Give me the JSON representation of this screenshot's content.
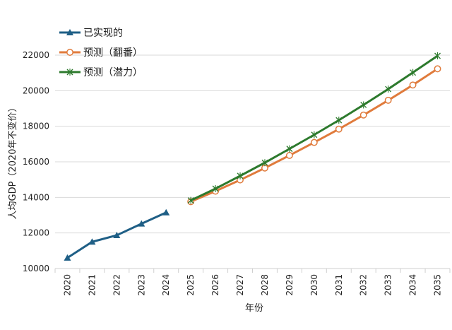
{
  "chart_data": {
    "type": "line",
    "title": "",
    "xlabel": "年份",
    "ylabel": "人均GDP（2020年不变价）",
    "x": [
      2020,
      2021,
      2022,
      2023,
      2024,
      2025,
      2026,
      2027,
      2028,
      2029,
      2030,
      2031,
      2032,
      2033,
      2034,
      2035
    ],
    "ylim": [
      10000,
      22000
    ],
    "yticks": [
      10000,
      12000,
      14000,
      16000,
      18000,
      20000,
      22000
    ],
    "grid": "horizontal",
    "legend_position": "top-left",
    "series": [
      {
        "name": "已实现的",
        "color": "#1f5f86",
        "marker": "triangle",
        "x": [
          2020,
          2021,
          2022,
          2023,
          2024
        ],
        "values": [
          10600,
          11500,
          11870,
          12520,
          13150
        ]
      },
      {
        "name": "预测（翻番）",
        "color": "#e07b3c",
        "marker": "circle-open",
        "x": [
          2025,
          2026,
          2027,
          2028,
          2029,
          2030,
          2031,
          2032,
          2033,
          2034,
          2035
        ],
        "values": [
          13760,
          14350,
          14980,
          15650,
          16360,
          17090,
          17840,
          18630,
          19460,
          20320,
          21230
        ]
      },
      {
        "name": "预测（潜力）",
        "color": "#2d7a2d",
        "marker": "x",
        "x": [
          2025,
          2026,
          2027,
          2028,
          2029,
          2030,
          2031,
          2032,
          2033,
          2034,
          2035
        ],
        "values": [
          13830,
          14490,
          15210,
          15950,
          16730,
          17520,
          18340,
          19200,
          20090,
          21020,
          21960
        ]
      }
    ]
  }
}
